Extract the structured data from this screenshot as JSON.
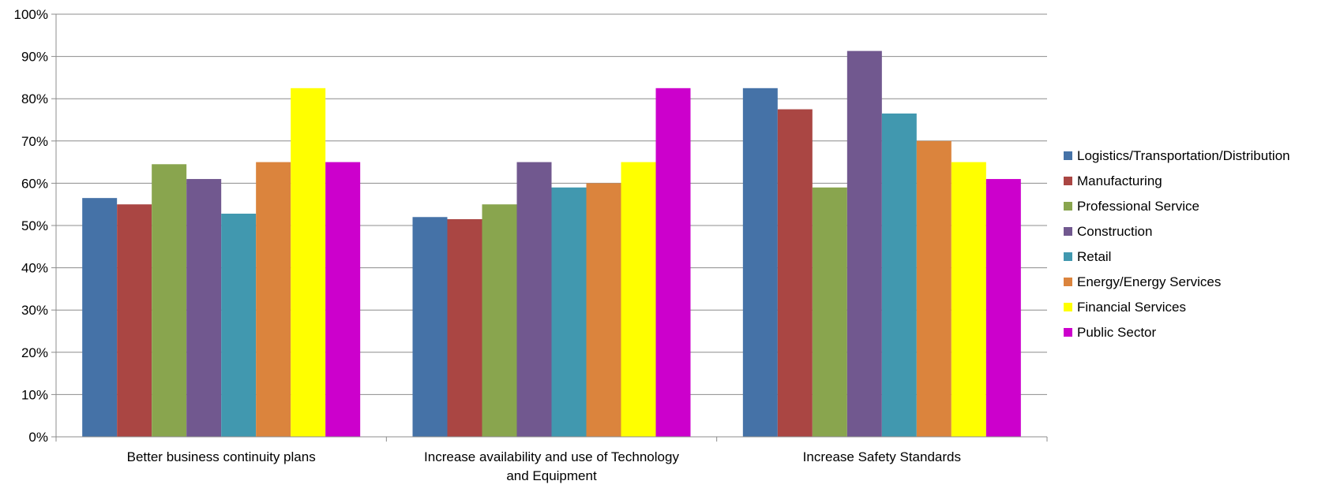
{
  "chart_data": {
    "type": "bar",
    "categories": [
      "Better business continuity plans",
      "Increase availability and use of Technology and Equipment",
      "Increase Safety Standards"
    ],
    "series": [
      {
        "name": "Logistics/Transportation/Distribution",
        "color": "#4572A7",
        "values": [
          56.5,
          52,
          82.5
        ]
      },
      {
        "name": "Manufacturing",
        "color": "#AA4643",
        "values": [
          55,
          51.5,
          77.5
        ]
      },
      {
        "name": "Professional Service",
        "color": "#89A54E",
        "values": [
          64.5,
          55,
          59
        ]
      },
      {
        "name": "Construction",
        "color": "#71588F",
        "values": [
          61,
          65,
          91.3
        ]
      },
      {
        "name": "Retail",
        "color": "#4198AF",
        "values": [
          52.8,
          59,
          76.5
        ]
      },
      {
        "name": "Energy/Energy Services",
        "color": "#DB843D",
        "values": [
          65,
          60,
          70
        ]
      },
      {
        "name": "Financial Services",
        "color": "#FFFF00",
        "values": [
          82.5,
          65,
          65
        ]
      },
      {
        "name": "Public Sector",
        "color": "#CC00CC",
        "values": [
          65,
          82.5,
          61
        ]
      }
    ],
    "ylim": [
      0,
      100
    ],
    "yticks": [
      "0%",
      "10%",
      "20%",
      "30%",
      "40%",
      "50%",
      "60%",
      "70%",
      "80%",
      "90%",
      "100%"
    ],
    "grid": true,
    "legend_position": "right"
  }
}
